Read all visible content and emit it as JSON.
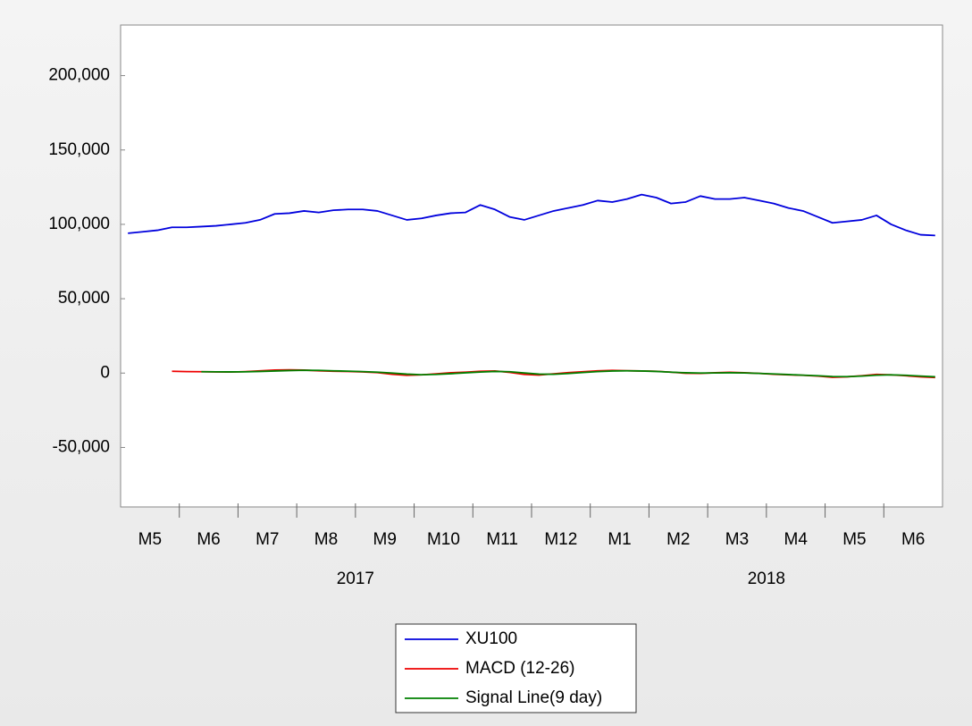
{
  "chart_data": {
    "type": "line",
    "categories": [
      "M5",
      null,
      null,
      null,
      "M6",
      null,
      null,
      null,
      "M7",
      null,
      null,
      null,
      "M8",
      null,
      null,
      null,
      "M9",
      null,
      null,
      null,
      "M10",
      null,
      null,
      null,
      "M11",
      null,
      null,
      null,
      "M12",
      null,
      null,
      null,
      "M1",
      null,
      null,
      null,
      "M2",
      null,
      null,
      null,
      "M3",
      null,
      null,
      null,
      "M4",
      null,
      null,
      null,
      "M5",
      null,
      null,
      null,
      "M6",
      null,
      null,
      null
    ],
    "years": [
      "2017",
      "2018"
    ],
    "series": [
      {
        "name": "XU100",
        "color": "#0000dd",
        "values": [
          94000,
          95000,
          96000,
          98000,
          98000,
          98500,
          99000,
          100000,
          101000,
          103000,
          107000,
          107500,
          109000,
          108000,
          109500,
          110000,
          110000,
          109000,
          106000,
          103000,
          104000,
          106000,
          107500,
          108000,
          113000,
          110000,
          105000,
          103000,
          106000,
          109000,
          111000,
          113000,
          116000,
          115000,
          117000,
          120000,
          118000,
          114000,
          115000,
          119000,
          117000,
          117000,
          118000,
          116000,
          114000,
          111000,
          109000,
          105000,
          101000,
          102000,
          103000,
          106000,
          100000,
          96000,
          93000,
          92500
        ]
      },
      {
        "name": "MACD (12-26)",
        "color": "#ee0000",
        "values": [
          null,
          null,
          null,
          1200,
          1000,
          900,
          800,
          700,
          1000,
          1500,
          2000,
          2200,
          2000,
          1500,
          1200,
          1100,
          800,
          300,
          -800,
          -1500,
          -1200,
          -500,
          200,
          600,
          1200,
          1400,
          500,
          -900,
          -1300,
          -500,
          300,
          900,
          1500,
          1800,
          1600,
          1400,
          1200,
          600,
          -100,
          -200,
          200,
          500,
          200,
          -200,
          -800,
          -1200,
          -1500,
          -2000,
          -2800,
          -2500,
          -1800,
          -900,
          -1200,
          -1800,
          -2500,
          -3000
        ]
      },
      {
        "name": "Signal Line(9 day)",
        "color": "#008000",
        "values": [
          null,
          null,
          null,
          null,
          null,
          900,
          850,
          800,
          850,
          1100,
          1400,
          1700,
          1900,
          1800,
          1500,
          1300,
          1000,
          600,
          0,
          -700,
          -1100,
          -900,
          -400,
          200,
          700,
          1100,
          900,
          100,
          -700,
          -800,
          -300,
          400,
          1000,
          1400,
          1500,
          1400,
          1100,
          600,
          200,
          0,
          100,
          200,
          100,
          -200,
          -600,
          -1000,
          -1400,
          -1800,
          -2300,
          -2400,
          -2000,
          -1400,
          -1200,
          -1500,
          -2000,
          -2500
        ]
      }
    ],
    "ylim": [
      -90000,
      234000
    ],
    "yticks": [
      {
        "value": -50000,
        "label": "-50,000"
      },
      0,
      {
        "value": 50000,
        "label": "50,000"
      },
      {
        "value": 100000,
        "label": "100,000"
      },
      {
        "value": 150000,
        "label": "150,000"
      },
      {
        "value": 200000,
        "label": "200,000"
      }
    ],
    "grid": false,
    "legend": "bottom"
  }
}
